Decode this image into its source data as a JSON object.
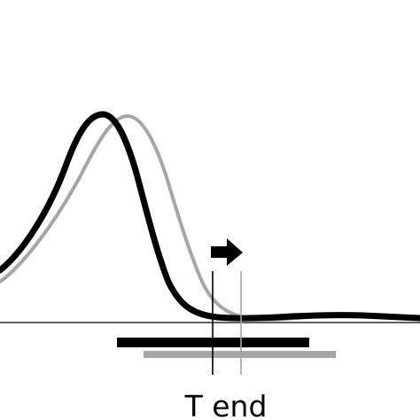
{
  "diagram": {
    "label": "T end",
    "colors": {
      "curve_primary": "#000000",
      "curve_shifted": "#a6a6a6",
      "baseline": "#000000",
      "bar_primary": "#000000",
      "bar_shifted": "#a6a6a6",
      "marker_primary": "#000000",
      "marker_shifted": "#a6a6a6",
      "arrow": "#000000",
      "label": "#000000"
    },
    "arrow_direction": "right"
  }
}
